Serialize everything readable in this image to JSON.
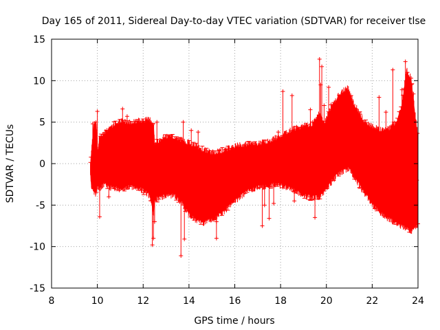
{
  "chart_data": {
    "type": "scatter",
    "title": "Day 165 of 2011, Sidereal Day-to-day VTEC variation (SDTVAR) for receiver tlse",
    "xlabel": "GPS time / hours",
    "ylabel": "SDTVAR / TECUs",
    "xlim": [
      8,
      24
    ],
    "ylim": [
      -15,
      15
    ],
    "xticks": [
      "8",
      "10",
      "12",
      "14",
      "16",
      "18",
      "20",
      "22",
      "24"
    ],
    "yticks": [
      "15",
      "10",
      "5",
      "0",
      "-5",
      "-10",
      "-15"
    ],
    "grid": true,
    "series": [
      {
        "name": "SDTVAR",
        "color": "#ff0000",
        "marker": "plus",
        "envelope": {
          "x": [
            9.7,
            9.75,
            9.85,
            9.95,
            10.0,
            10.1,
            10.3,
            10.6,
            11.0,
            11.5,
            11.9,
            12.3,
            12.45,
            12.5,
            12.7,
            13.0,
            13.4,
            13.7,
            14.0,
            14.3,
            14.6,
            15.0,
            15.4,
            15.8,
            16.2,
            16.6,
            17.0,
            17.4,
            17.8,
            18.2,
            18.6,
            19.0,
            19.4,
            19.7,
            19.9,
            20.2,
            20.5,
            20.8,
            20.95,
            21.2,
            21.6,
            22.0,
            22.4,
            22.8,
            23.1,
            23.3,
            23.5,
            23.7,
            23.9,
            24.0
          ],
          "upper": [
            -0.2,
            1.5,
            4.7,
            4.8,
            1.0,
            3.0,
            3.5,
            4.2,
            4.8,
            4.7,
            4.9,
            5.0,
            4.6,
            2.0,
            2.5,
            3.0,
            2.8,
            2.5,
            2.2,
            1.8,
            1.4,
            1.0,
            1.2,
            1.6,
            1.9,
            2.0,
            2.1,
            2.3,
            2.8,
            3.4,
            3.9,
            4.2,
            4.5,
            6.0,
            4.6,
            6.5,
            7.8,
            8.6,
            8.8,
            7.0,
            5.0,
            4.2,
            3.8,
            4.0,
            5.0,
            6.8,
            11.0,
            10.0,
            5.0,
            3.0
          ],
          "lower": [
            -1.0,
            -3.0,
            -3.0,
            -3.5,
            -2.5,
            -2.7,
            -2.2,
            -2.6,
            -2.8,
            -2.5,
            -2.8,
            -3.6,
            -6.0,
            -4.0,
            -3.9,
            -3.5,
            -3.6,
            -4.5,
            -5.8,
            -6.6,
            -6.9,
            -6.5,
            -5.8,
            -4.8,
            -3.8,
            -3.0,
            -2.6,
            -2.4,
            -2.2,
            -2.5,
            -3.0,
            -3.6,
            -3.8,
            -3.7,
            -3.0,
            -2.0,
            -1.0,
            -0.5,
            -0.3,
            -1.2,
            -3.0,
            -4.6,
            -5.8,
            -6.5,
            -7.0,
            -7.3,
            -7.6,
            -7.8,
            -7.5,
            -7.0
          ]
        },
        "outliers": [
          [
            9.8,
            4.8
          ],
          [
            10.0,
            6.3
          ],
          [
            10.1,
            -6.4
          ],
          [
            10.5,
            -4.0
          ],
          [
            11.1,
            6.6
          ],
          [
            11.3,
            5.7
          ],
          [
            12.35,
            -4.5
          ],
          [
            12.4,
            -9.8
          ],
          [
            12.45,
            -9.0
          ],
          [
            12.5,
            -7.0
          ],
          [
            12.6,
            5.0
          ],
          [
            13.65,
            -11.1
          ],
          [
            13.75,
            5.0
          ],
          [
            13.8,
            -9.1
          ],
          [
            13.9,
            -5.0
          ],
          [
            14.1,
            4.0
          ],
          [
            14.4,
            3.8
          ],
          [
            15.2,
            -9.0
          ],
          [
            15.2,
            -7.0
          ],
          [
            17.2,
            -7.5
          ],
          [
            17.3,
            -5.0
          ],
          [
            17.5,
            -6.6
          ],
          [
            17.7,
            -4.8
          ],
          [
            17.9,
            3.8
          ],
          [
            18.1,
            8.7
          ],
          [
            18.5,
            8.2
          ],
          [
            18.6,
            -4.5
          ],
          [
            19.3,
            6.5
          ],
          [
            19.4,
            5.0
          ],
          [
            19.5,
            -6.5
          ],
          [
            19.7,
            12.6
          ],
          [
            19.75,
            9.5
          ],
          [
            19.8,
            11.7
          ],
          [
            19.9,
            7.0
          ],
          [
            20.1,
            9.2
          ],
          [
            20.2,
            7.1
          ],
          [
            22.3,
            8.0
          ],
          [
            22.6,
            6.2
          ],
          [
            22.9,
            11.3
          ],
          [
            23.3,
            8.9
          ],
          [
            23.45,
            12.3
          ],
          [
            23.5,
            10.0
          ],
          [
            23.7,
            10.3
          ],
          [
            23.8,
            8.4
          ],
          [
            23.9,
            -4.3
          ],
          [
            23.95,
            -2.0
          ]
        ]
      }
    ]
  }
}
